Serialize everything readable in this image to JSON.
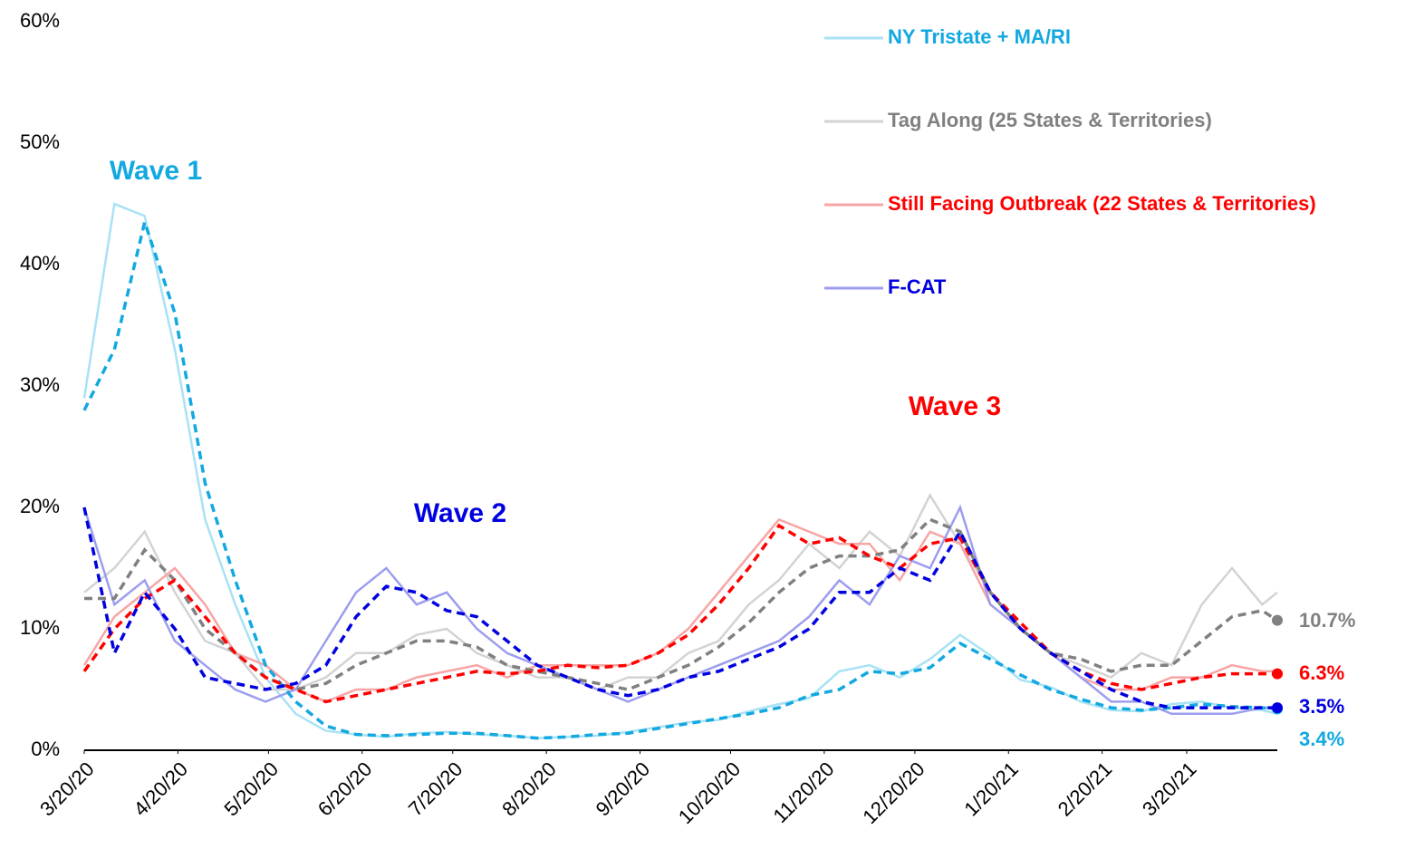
{
  "chart_data": {
    "type": "line",
    "x": [
      "3/20/20",
      "3/30/20",
      "4/9/20",
      "4/19/20",
      "4/29/20",
      "5/9/20",
      "5/19/20",
      "5/29/20",
      "6/8/20",
      "6/18/20",
      "6/28/20",
      "7/8/20",
      "7/18/20",
      "7/28/20",
      "8/7/20",
      "8/17/20",
      "8/27/20",
      "9/6/20",
      "9/16/20",
      "9/26/20",
      "10/6/20",
      "10/16/20",
      "10/26/20",
      "11/5/20",
      "11/15/20",
      "11/25/20",
      "12/5/20",
      "12/15/20",
      "12/25/20",
      "1/4/21",
      "1/14/21",
      "1/24/21",
      "2/3/21",
      "2/13/21",
      "2/23/21",
      "3/5/21",
      "3/15/21",
      "3/25/21",
      "4/4/21",
      "4/14/21",
      "4/19/21"
    ],
    "xlim": [
      "3/20/20",
      "4/19/21"
    ],
    "xticks": [
      "3/20/20",
      "4/20/20",
      "5/20/20",
      "6/20/20",
      "7/20/20",
      "8/20/20",
      "9/20/20",
      "10/20/20",
      "11/20/20",
      "12/20/20",
      "1/20/21",
      "2/20/21",
      "3/20/21"
    ],
    "ylim": [
      0,
      60
    ],
    "yticks": [
      {
        "value": 0,
        "label": "0%"
      },
      {
        "value": 10,
        "label": "10%"
      },
      {
        "value": 20,
        "label": "20%"
      },
      {
        "value": 30,
        "label": "30%"
      },
      {
        "value": 40,
        "label": "40%"
      },
      {
        "value": 50,
        "label": "50%"
      },
      {
        "value": 60,
        "label": "60%"
      }
    ],
    "series": [
      {
        "name": "NY Tristate + MA/RI",
        "color": "#a8e2f5",
        "trend_color": "#12a8e0",
        "values": [
          29,
          45,
          44,
          33,
          19,
          12,
          6,
          3,
          1.6,
          1.3,
          1.1,
          1.4,
          1.5,
          1.3,
          1.2,
          1,
          1.1,
          1.2,
          1.5,
          1.9,
          2.3,
          2.5,
          3.2,
          3.8,
          4.3,
          6.5,
          7,
          6,
          7.5,
          9.5,
          7.8,
          5.8,
          5.2,
          4,
          3.3,
          3.2,
          3.8,
          4,
          3.5,
          3.3,
          3
        ],
        "trend_values": [
          28,
          33,
          43.5,
          36,
          22,
          14,
          7,
          4,
          2,
          1.3,
          1.2,
          1.3,
          1.4,
          1.4,
          1.2,
          1,
          1.1,
          1.3,
          1.4,
          1.8,
          2.2,
          2.6,
          3,
          3.5,
          4.5,
          5,
          6.5,
          6.3,
          6.8,
          8.8,
          7.5,
          6.2,
          5,
          4.2,
          3.5,
          3.3,
          3.5,
          3.8,
          3.6,
          3.5,
          3.4
        ],
        "end_value": 3.4,
        "end_value_label": "3.4%"
      },
      {
        "name": "Tag Along (25 States & Territories)",
        "color": "#d3d3d3",
        "trend_color": "#808080",
        "values": [
          13,
          15,
          18,
          13,
          9,
          8,
          5,
          5,
          6,
          8,
          8,
          9.5,
          10,
          8,
          7,
          6,
          6,
          5,
          6,
          6,
          8,
          9,
          12,
          14,
          17,
          15,
          18,
          16,
          21,
          17,
          13,
          10,
          8,
          7,
          6,
          8,
          7,
          12,
          15,
          12,
          13
        ],
        "trend_values": [
          12.5,
          12.5,
          16.5,
          14,
          10,
          8,
          6,
          5,
          5.5,
          7,
          8,
          9,
          9,
          8.5,
          7,
          6.5,
          6,
          5.5,
          5,
          6,
          7,
          8.5,
          10.5,
          13,
          15,
          16,
          16,
          16.5,
          19,
          18,
          13,
          10,
          8,
          7.5,
          6.5,
          7,
          7,
          9,
          11,
          11.5,
          10.7
        ],
        "end_value": 10.7,
        "end_value_label": "10.7%"
      },
      {
        "name": "Still Facing Outbreak (22 States & Territories)",
        "color": "#f8a5a5",
        "trend_color": "#ff0000",
        "values": [
          7,
          11,
          13,
          15,
          12,
          8,
          7,
          5,
          4,
          5,
          5,
          6,
          6.5,
          7,
          6,
          7,
          7,
          7,
          7,
          8,
          10,
          13,
          16,
          19,
          18,
          17,
          17,
          14,
          18,
          17,
          12,
          10,
          8,
          6,
          5,
          5,
          6,
          6,
          7,
          6.5,
          6.5
        ],
        "trend_values": [
          6.5,
          10,
          12.5,
          14,
          11,
          8,
          6,
          5,
          4,
          4.5,
          5,
          5.5,
          6,
          6.5,
          6.3,
          6.5,
          7,
          6.8,
          7,
          8,
          9.5,
          12,
          15,
          18.5,
          17,
          17.5,
          16,
          15,
          17,
          17.5,
          13,
          10.5,
          8,
          6.5,
          5.5,
          5,
          5.5,
          6,
          6.3,
          6.3,
          6.3
        ],
        "end_value": 6.3,
        "end_value_label": "6.3%"
      },
      {
        "name": "F-CAT",
        "color": "#9d9df0",
        "trend_color": "#0000e0",
        "values": [
          20,
          12,
          14,
          9,
          7,
          5,
          4,
          5,
          9,
          13,
          15,
          12,
          13,
          10,
          8,
          7,
          6,
          5,
          4,
          5,
          6,
          7,
          8,
          9,
          11,
          14,
          12,
          16,
          15,
          20,
          12,
          10,
          8,
          6,
          4,
          4,
          3,
          3,
          3,
          3.5,
          3.5
        ],
        "trend_values": [
          20,
          8,
          13,
          10,
          6,
          5.5,
          5,
          5.5,
          7,
          11,
          13.5,
          13,
          11.5,
          11,
          9,
          7,
          6,
          5,
          4.5,
          5,
          6,
          6.5,
          7.5,
          8.5,
          10,
          13,
          13,
          15,
          14,
          18,
          13,
          10,
          8,
          6.5,
          5,
          4,
          3.5,
          3.5,
          3.5,
          3.5,
          3.5
        ],
        "end_value": 3.5,
        "end_value_label": "3.5%"
      }
    ],
    "annotations": [
      {
        "text": "Wave 1",
        "color": "#12a8e0"
      },
      {
        "text": "Wave 2",
        "color": "#0000e0"
      },
      {
        "text": "Wave 3",
        "color": "#ff0000"
      }
    ]
  }
}
